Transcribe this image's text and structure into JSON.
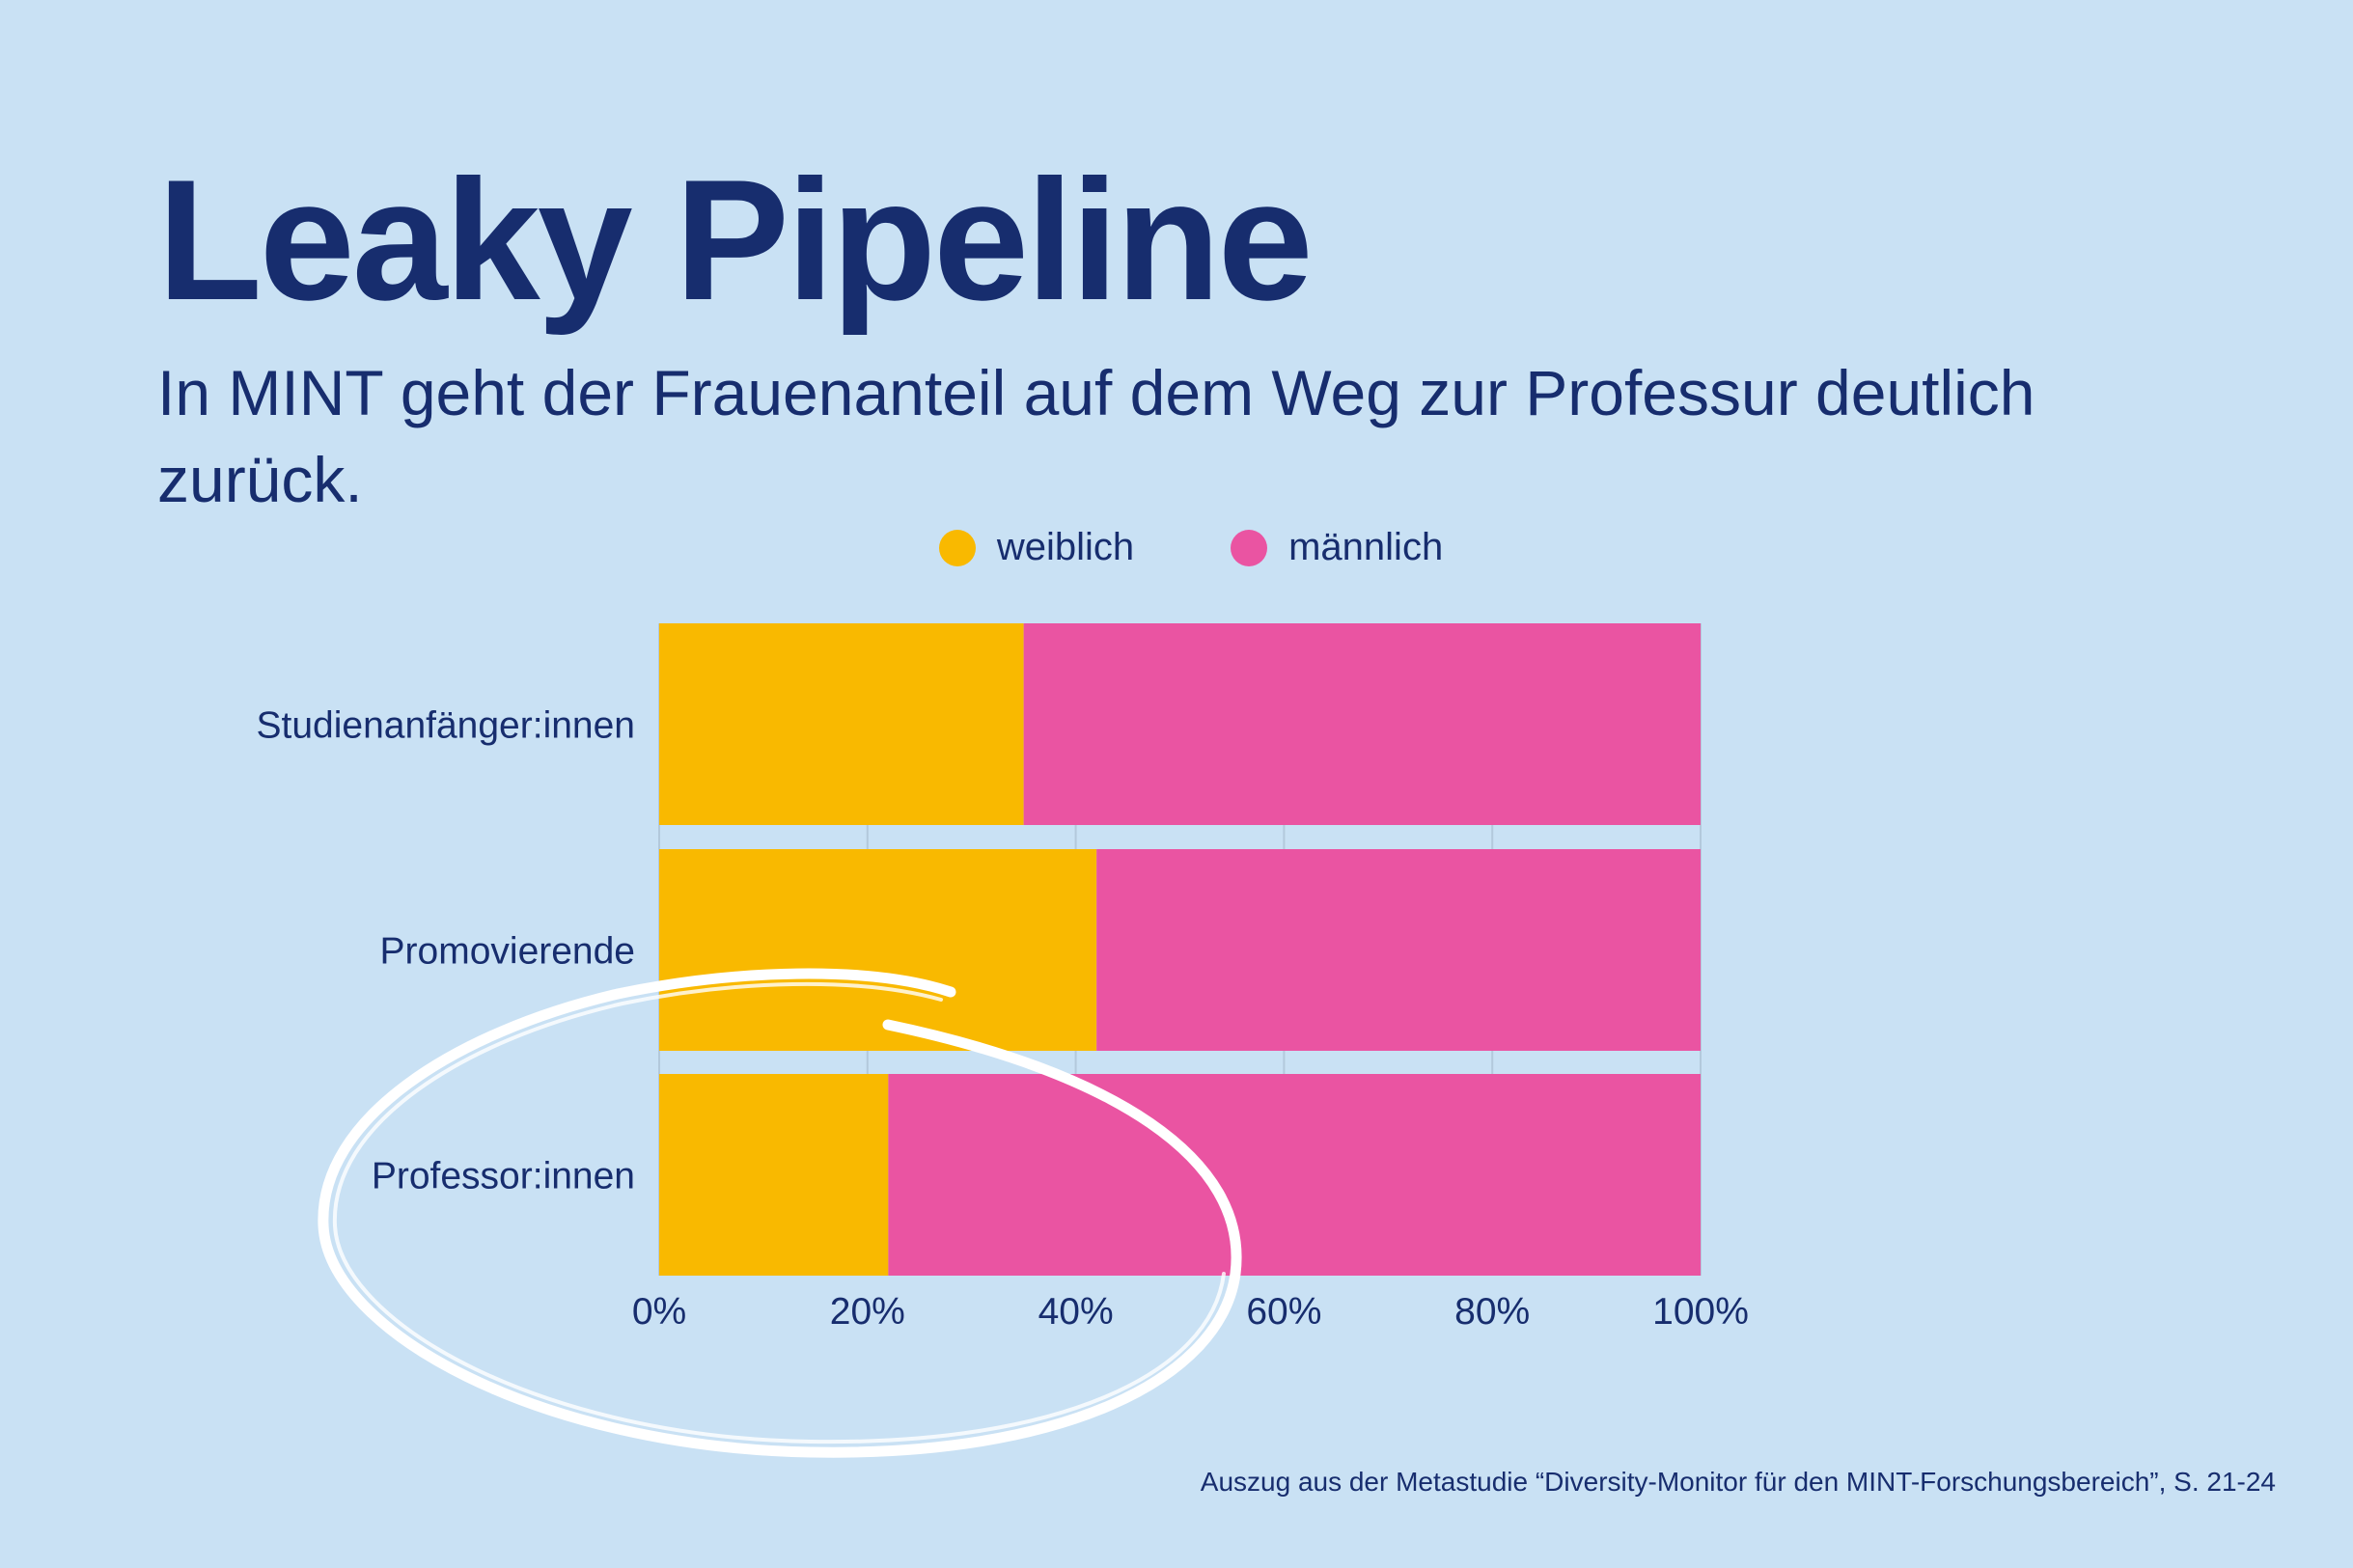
{
  "title": "Leaky Pipeline",
  "subtitle": "In MINT geht der Frauenanteil auf dem Weg zur Professur deutlich zurück.",
  "source": "Auszug aus der Metastudie “Diversity-Monitor für den  MINT-Forschungsbereich”, S. 21-24",
  "colors": {
    "weiblich": "#f9b900",
    "maennlich": "#ea54a2",
    "background": "#c9e1f4",
    "text": "#172d6e",
    "annotation": "#ffffff"
  },
  "chart_data": {
    "type": "bar",
    "orientation": "horizontal",
    "stacked": true,
    "categories": [
      "Studienanfänger:innen",
      "Promovierende",
      "Professor:innen"
    ],
    "series": [
      {
        "name": "weiblich",
        "values": [
          35,
          42,
          22
        ]
      },
      {
        "name": "männlich",
        "values": [
          65,
          58,
          78
        ]
      }
    ],
    "xlim": [
      0,
      100
    ],
    "xticks": [
      "0%",
      "20%",
      "40%",
      "60%",
      "80%",
      "100%"
    ],
    "xtick_values": [
      0,
      20,
      40,
      60,
      80,
      100
    ],
    "grid": true,
    "legend_position": "top-center",
    "annotation": "hand-drawn circle around Professor:innen"
  }
}
